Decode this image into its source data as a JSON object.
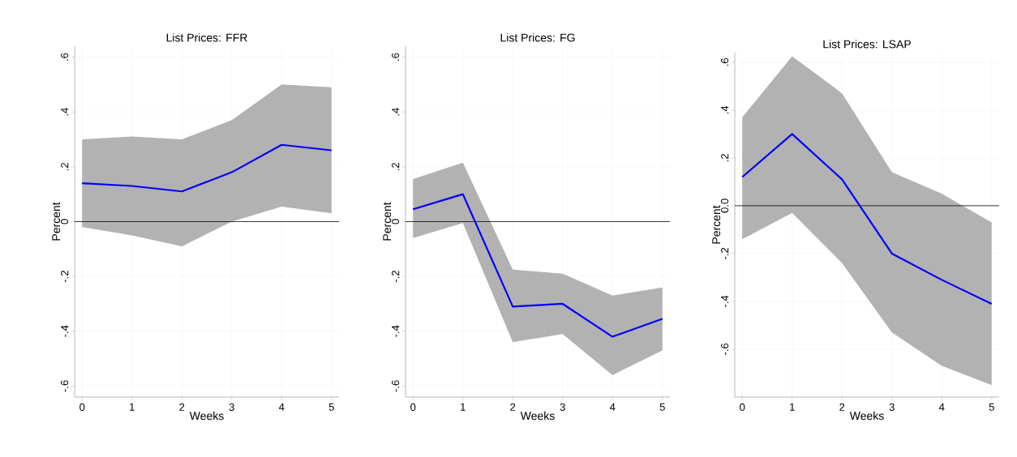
{
  "chart_data": [
    {
      "type": "line",
      "title": "List Prices: FFR",
      "xlabel": "Weeks",
      "ylabel": "Percent",
      "x": [
        0,
        1,
        2,
        3,
        4,
        5
      ],
      "xlim": [
        -0.15,
        5.15
      ],
      "ylim": [
        -0.64,
        0.64
      ],
      "xticks": [
        0,
        1,
        2,
        3,
        4,
        5
      ],
      "yticks": [
        {
          "value": -0.6,
          "label": "-.6"
        },
        {
          "value": -0.4,
          "label": "-.4"
        },
        {
          "value": -0.2,
          "label": "-.2"
        },
        0,
        {
          "value": 0.2,
          "label": ".2"
        },
        {
          "value": 0.4,
          "label": ".4"
        },
        {
          "value": 0.6,
          "label": ".6"
        }
      ],
      "grid": true,
      "ref_lines": [
        {
          "axis": "y",
          "value": 0,
          "color": "#000000"
        }
      ],
      "series": [
        {
          "color": "#0000ff",
          "values": [
            0.14,
            0.13,
            0.11,
            0.18,
            0.28,
            0.26
          ],
          "lower": [
            -0.02,
            -0.05,
            -0.09,
            0.0,
            0.055,
            0.03
          ],
          "upper": [
            0.3,
            0.31,
            0.3,
            0.37,
            0.5,
            0.49
          ]
        }
      ]
    },
    {
      "type": "line",
      "title": "List Prices: FG",
      "xlabel": "Weeks",
      "ylabel": "Percent",
      "x": [
        0,
        1,
        2,
        3,
        4,
        5
      ],
      "xlim": [
        -0.15,
        5.15
      ],
      "ylim": [
        -0.64,
        0.64
      ],
      "xticks": [
        0,
        1,
        2,
        3,
        4,
        5
      ],
      "yticks": [
        {
          "value": -0.6,
          "label": "-.6"
        },
        {
          "value": -0.4,
          "label": "-.4"
        },
        {
          "value": -0.2,
          "label": "-.2"
        },
        0,
        {
          "value": 0.2,
          "label": ".2"
        },
        {
          "value": 0.4,
          "label": ".4"
        },
        {
          "value": 0.6,
          "label": ".6"
        }
      ],
      "grid": true,
      "ref_lines": [
        {
          "axis": "y",
          "value": 0,
          "color": "#000000"
        }
      ],
      "series": [
        {
          "color": "#0000ff",
          "values": [
            0.045,
            0.1,
            -0.31,
            -0.3,
            -0.42,
            -0.355
          ],
          "lower": [
            -0.06,
            -0.005,
            -0.44,
            -0.41,
            -0.56,
            -0.47
          ],
          "upper": [
            0.155,
            0.215,
            -0.175,
            -0.19,
            -0.27,
            -0.24
          ]
        }
      ]
    },
    {
      "type": "line",
      "title": "List Prices: LSAP",
      "xlabel": "Weeks",
      "ylabel": "Percent",
      "x": [
        0,
        1,
        2,
        3,
        4,
        5
      ],
      "xlim": [
        -0.15,
        5.15
      ],
      "ylim": [
        -0.8,
        0.64
      ],
      "xticks": [
        0,
        1,
        2,
        3,
        4,
        5
      ],
      "yticks": [
        {
          "value": -0.6,
          "label": "-.6"
        },
        {
          "value": -0.4,
          "label": "-.4"
        },
        {
          "value": -0.2,
          "label": "-.2"
        },
        {
          "value": 0,
          "label": "0.0"
        },
        {
          "value": 0.2,
          "label": ".2"
        },
        {
          "value": 0.4,
          "label": ".4"
        },
        {
          "value": 0.6,
          "label": ".6"
        }
      ],
      "grid": true,
      "ref_lines": [
        {
          "axis": "y",
          "value": 0,
          "color": "#000000"
        }
      ],
      "series": [
        {
          "color": "#0000ff",
          "values": [
            0.12,
            0.3,
            0.11,
            -0.2,
            -0.31,
            -0.41
          ],
          "lower": [
            -0.14,
            -0.03,
            -0.24,
            -0.53,
            -0.67,
            -0.75
          ],
          "upper": [
            0.37,
            0.625,
            0.47,
            0.14,
            0.05,
            -0.07
          ]
        }
      ]
    }
  ]
}
